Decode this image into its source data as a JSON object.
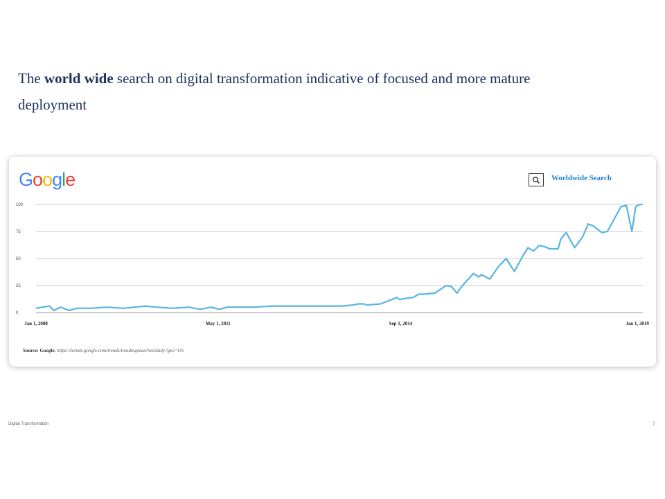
{
  "headline": {
    "prefix": "The ",
    "emphasis": "world wide",
    "suffix": " search on digital transformation indicative of focused and more mature deployment",
    "color": "#1c2f5e"
  },
  "logo": {
    "letters": [
      {
        "char": "G",
        "color": "#4285f4"
      },
      {
        "char": "o",
        "color": "#ea4335"
      },
      {
        "char": "o",
        "color": "#fbbc05"
      },
      {
        "char": "g",
        "color": "#4285f4"
      },
      {
        "char": "l",
        "color": "#34a853"
      },
      {
        "char": "e",
        "color": "#ea4335"
      }
    ]
  },
  "search": {
    "icon": "magnifier-icon",
    "label": "Worldwide Search",
    "label_color": "#1a7fd0"
  },
  "source": {
    "label": "Source: Google.",
    "url": "https://trends.google.com/trends/trendingsearches/daily?geo=US"
  },
  "footer": {
    "left": "Digital Transformation",
    "right": "7"
  },
  "chart_data": {
    "type": "line",
    "title": "",
    "xlabel": "",
    "ylabel": "",
    "ylim": [
      0,
      100
    ],
    "y_ticks": [
      0,
      25,
      50,
      75,
      100
    ],
    "x_ticks": [
      {
        "label": "Jan 1, 2008",
        "x": 2008.0
      },
      {
        "label": "May 1, 2011",
        "x": 2011.33
      },
      {
        "label": "Sep 1, 2014",
        "x": 2014.67
      },
      {
        "label": "Jan 1, 2019",
        "x": 2019.0
      }
    ],
    "xlim": [
      2008.0,
      2019.1
    ],
    "grid": true,
    "line_color": "#56b4e0",
    "series": [
      {
        "x": [
          2008.0,
          2008.25,
          2008.32,
          2008.45,
          2008.6,
          2008.75,
          2009.0,
          2009.3,
          2009.6,
          2010.0,
          2010.2,
          2010.5,
          2010.8,
          2011.0,
          2011.2,
          2011.35,
          2011.5,
          2011.7,
          2012.0,
          2012.3,
          2012.5,
          2012.7,
          2013.0,
          2013.3,
          2013.6,
          2013.8,
          2013.9,
          2014.0,
          2014.05,
          2014.3,
          2014.6,
          2014.65,
          2014.75,
          2014.9,
          2015.0,
          2015.1,
          2015.3,
          2015.5,
          2015.6,
          2015.7,
          2015.8,
          2016.0,
          2016.1,
          2016.15,
          2016.3,
          2016.45,
          2016.6,
          2016.75,
          2016.9,
          2017.0,
          2017.1,
          2017.2,
          2017.3,
          2017.4,
          2017.55,
          2017.6,
          2017.7,
          2017.85,
          2018.0,
          2018.1,
          2018.2,
          2018.35,
          2018.45,
          2018.55,
          2018.7,
          2018.8,
          2018.9,
          2018.97,
          2019.0,
          2019.05,
          2019.1
        ],
        "y": [
          4,
          6,
          2,
          5,
          2,
          4,
          4,
          5,
          4,
          6,
          5,
          4,
          5,
          3,
          5,
          3,
          5,
          5,
          5,
          6,
          6,
          6,
          6,
          6,
          6,
          7,
          8,
          8,
          7,
          8,
          14,
          12,
          13,
          14,
          17,
          17,
          18,
          25,
          24,
          18,
          25,
          36,
          33,
          35,
          31,
          42,
          50,
          38,
          52,
          60,
          57,
          62,
          61,
          59,
          59,
          68,
          74,
          60,
          70,
          82,
          80,
          74,
          75,
          84,
          98,
          99,
          75,
          98,
          99,
          100,
          100
        ]
      }
    ]
  }
}
